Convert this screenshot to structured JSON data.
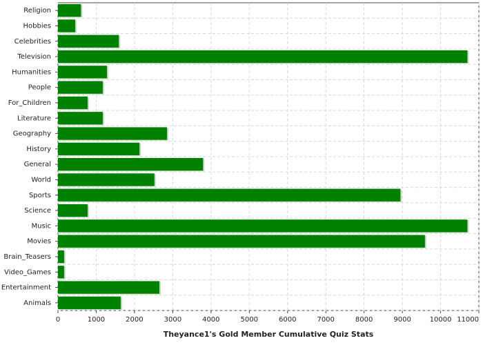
{
  "chart_data": {
    "type": "barh",
    "title": "Theyance1's Gold Member Cumulative Quiz Stats",
    "categories": [
      "Religion",
      "Hobbies",
      "Celebrities",
      "Television",
      "Humanities",
      "People",
      "For_Children",
      "Literature",
      "Geography",
      "History",
      "General",
      "World",
      "Sports",
      "Science",
      "Music",
      "Movies",
      "Brain_Teasers",
      "Video_Games",
      "Entertainment",
      "Animals"
    ],
    "values": [
      600,
      450,
      1590,
      10700,
      1280,
      1170,
      775,
      1170,
      2850,
      2130,
      3790,
      2520,
      8950,
      775,
      10700,
      9590,
      160,
      160,
      2650,
      1640
    ],
    "color": "#008000",
    "xlim": [
      0,
      11000
    ],
    "xticks": [
      0,
      1000,
      2000,
      3000,
      4000,
      5000,
      6000,
      7000,
      8000,
      9000,
      10000,
      11000
    ],
    "grid": true
  }
}
